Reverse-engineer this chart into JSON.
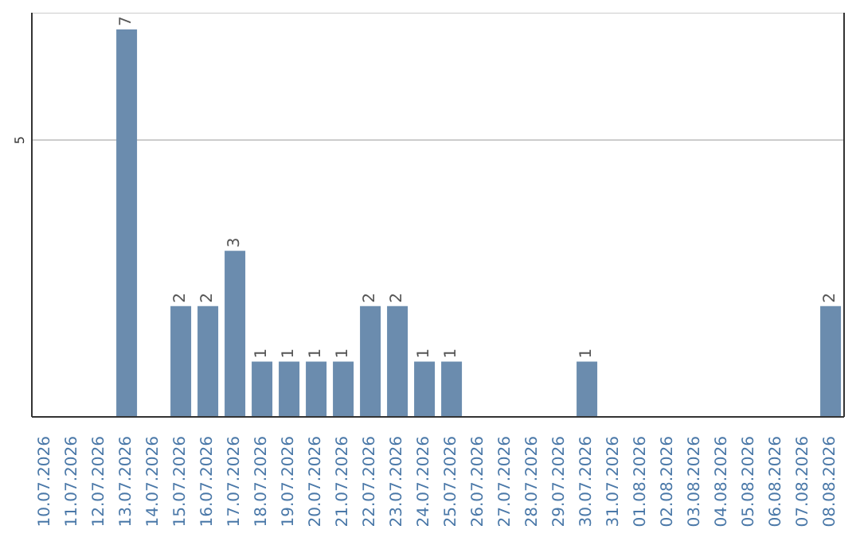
{
  "chart_data": {
    "type": "bar",
    "categories": [
      "10.07.2026",
      "11.07.2026",
      "12.07.2026",
      "13.07.2026",
      "14.07.2026",
      "15.07.2026",
      "16.07.2026",
      "17.07.2026",
      "18.07.2026",
      "19.07.2026",
      "20.07.2026",
      "21.07.2026",
      "22.07.2026",
      "23.07.2026",
      "24.07.2026",
      "25.07.2026",
      "26.07.2026",
      "27.07.2026",
      "28.07.2026",
      "29.07.2026",
      "30.07.2026",
      "31.07.2026",
      "01.08.2026",
      "02.08.2026",
      "03.08.2026",
      "04.08.2026",
      "05.08.2026",
      "06.08.2026",
      "07.08.2026",
      "08.08.2026"
    ],
    "values": [
      0,
      0,
      0,
      7,
      0,
      2,
      2,
      3,
      1,
      1,
      1,
      1,
      2,
      2,
      1,
      1,
      0,
      0,
      0,
      0,
      1,
      0,
      0,
      0,
      0,
      0,
      0,
      0,
      0,
      2
    ],
    "value_labels": [
      null,
      null,
      null,
      "7",
      null,
      "2",
      "2",
      "3",
      "1",
      "1",
      "1",
      "1",
      "2",
      "2",
      "1",
      "1",
      null,
      null,
      null,
      null,
      "1",
      null,
      null,
      null,
      null,
      null,
      null,
      null,
      null,
      "2"
    ],
    "color": "#6b8cae",
    "ylim": [
      0,
      7.3
    ],
    "yticks": [
      5
    ],
    "grid": "y"
  }
}
